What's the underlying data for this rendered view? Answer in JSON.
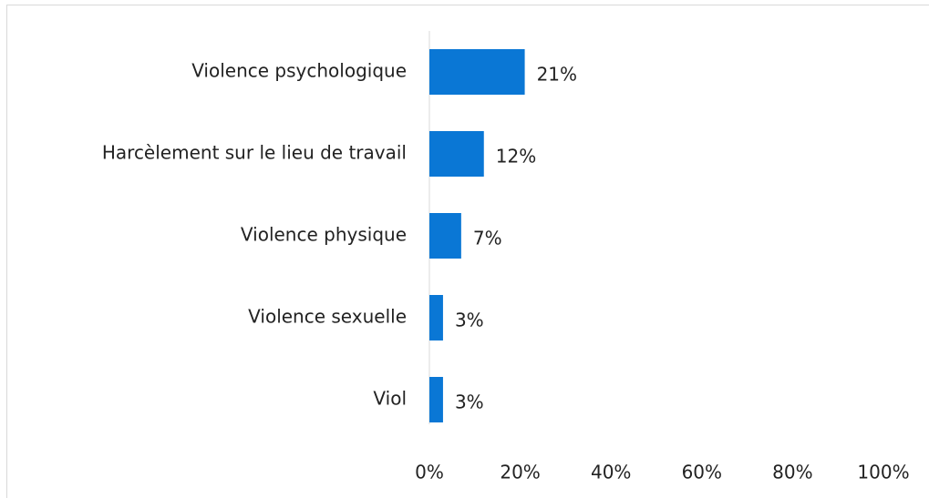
{
  "chart_data": {
    "type": "bar",
    "orientation": "horizontal",
    "categories": [
      "Violence psychologique",
      "Harcèlement sur le lieu de travail",
      "Violence physique",
      "Violence sexuelle",
      "Viol"
    ],
    "values": [
      21,
      12,
      7,
      3,
      3
    ],
    "value_labels": [
      "21%",
      "12%",
      "7%",
      "3%",
      "3%"
    ],
    "color": "#0a77d5",
    "xlim": [
      0,
      100
    ],
    "xticks": [
      {
        "value": 0,
        "label": "0%"
      },
      {
        "value": 20,
        "label": "20%"
      },
      {
        "value": 40,
        "label": "40%"
      },
      {
        "value": 60,
        "label": "60%"
      },
      {
        "value": 80,
        "label": "80%"
      },
      {
        "value": 100,
        "label": "100%"
      }
    ],
    "grid": false
  }
}
